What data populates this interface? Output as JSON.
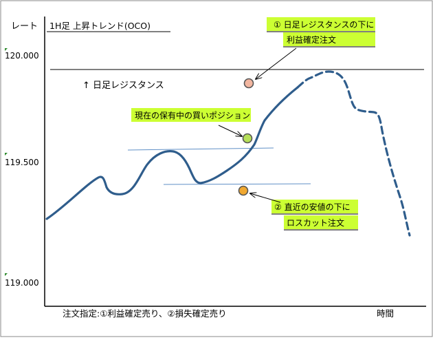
{
  "header": {
    "rate_label": "レート",
    "chart_title": "1H足 上昇トレンド(OCO)"
  },
  "axis": {
    "y_ticks": [
      "120.000",
      "119.500",
      "119.000"
    ],
    "x_label": "時間"
  },
  "annotations": {
    "resistance_label": "↑ 日足レジスタンス",
    "current_position": "現在の保有中の買いポジション",
    "take_profit_line1": "① 日足レジスタンスの下に",
    "take_profit_line2": "利益確定注文",
    "stop_loss_line1": "② 直近の安値の下に",
    "stop_loss_line2": "ロスカット注文"
  },
  "footer": {
    "order_note": "注文指定:①利益確定売り、②損失確定売り"
  },
  "colors": {
    "price_line": "#2f5d8c",
    "support_lines": "#5f8fc6",
    "callout_fill": "#ccff33",
    "take_profit_marker": "#f2b6a0",
    "current_marker": "#b6e05a",
    "stop_loss_marker": "#f0a830",
    "tick_marker": "#2e8b2e"
  }
}
